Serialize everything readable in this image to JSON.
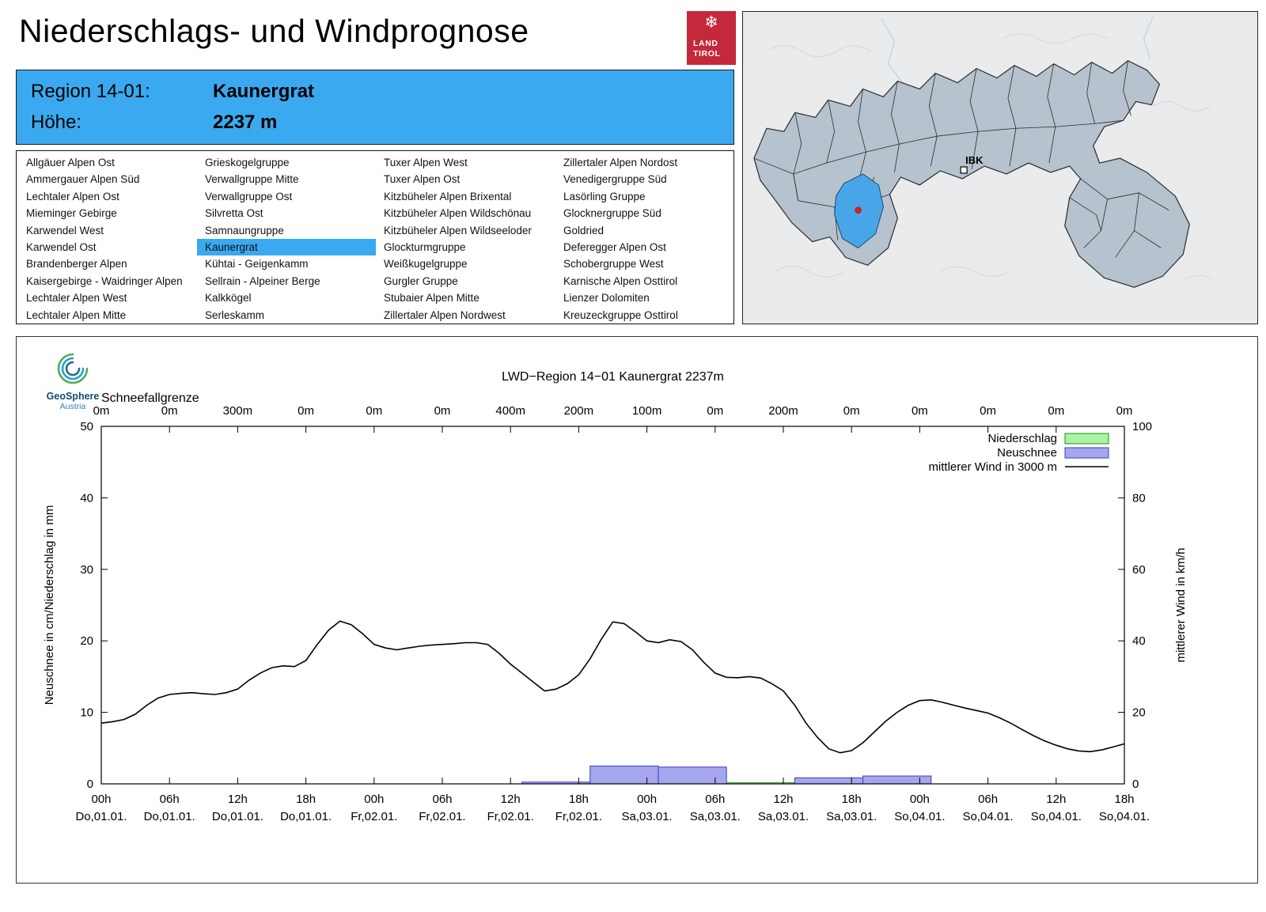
{
  "page": {
    "title": "Niederschlags- und Windprognose"
  },
  "colors": {
    "accent_blue": "#3aa9ef",
    "brand_red": "#c4283b",
    "map_region_fill": "#b6c2ce",
    "map_highlight": "#48a6e8",
    "map_marker_red": "#c62828",
    "bar_precip_fill": "#a9f3a2",
    "bar_precip_stroke": "#18921b",
    "bar_snow_fill": "#a6a6ec",
    "bar_snow_stroke": "#3c3cc8",
    "wind_line": "#000000"
  },
  "logo": {
    "land_label": "LAND",
    "tirol_label": "TIROL",
    "snowflake_icon": "❄"
  },
  "map": {
    "city_label": "IBK"
  },
  "branding": {
    "geosphere": "GeoSphere",
    "austria": "Austria"
  },
  "region_info": {
    "region_label": "Region 14-01:",
    "region_value": "Kaunergrat",
    "altitude_label": "Höhe:",
    "altitude_value": "2237 m"
  },
  "region_list": {
    "selected": "Kaunergrat",
    "columns": [
      [
        "Allgäuer Alpen Ost",
        "Ammergauer Alpen Süd",
        "Lechtaler Alpen Ost",
        "Mieminger Gebirge",
        "Karwendel West",
        "Karwendel Ost",
        "Brandenberger Alpen",
        "Kaisergebirge - Waidringer Alpen",
        "Lechtaler Alpen West",
        "Lechtaler Alpen Mitte"
      ],
      [
        "Grieskogelgruppe",
        "Verwallgruppe Mitte",
        "Verwallgruppe Ost",
        "Silvretta Ost",
        "Samnaungruppe",
        "Kaunergrat",
        "Kühtai - Geigenkamm",
        "Sellrain - Alpeiner Berge",
        "Kalkkögel",
        "Serleskamm"
      ],
      [
        "Tuxer Alpen West",
        "Tuxer Alpen Ost",
        "Kitzbüheler Alpen Brixental",
        "Kitzbüheler Alpen Wildschönau",
        "Kitzbüheler Alpen Wildseeloder",
        "Glockturmgruppe",
        "Weißkugelgruppe",
        "Gurgler Gruppe",
        "Stubaier Alpen Mitte",
        "Zillertaler Alpen Nordwest"
      ],
      [
        "Zillertaler Alpen Nordost",
        "Venedigergruppe Süd",
        "Lasörling Gruppe",
        "Glocknergruppe Süd",
        "Goldried",
        "Deferegger Alpen Ost",
        "Schobergruppe West",
        "Karnische Alpen Osttirol",
        "Lienzer Dolomiten",
        "Kreuzeckgruppe Osttirol"
      ]
    ]
  },
  "chart_data": {
    "type": "line+bar",
    "title": "LWD−Region 14−01 Kaunergrat 2237m",
    "top_axis": {
      "label": "Schneefallgrenze",
      "tick_labels": [
        "0m",
        "0m",
        "300m",
        "0m",
        "0m",
        "0m",
        "400m",
        "200m",
        "100m",
        "0m",
        "200m",
        "0m",
        "0m",
        "0m",
        "0m",
        "0m"
      ]
    },
    "x_ticks": [
      {
        "hour_label": "00h",
        "date_label": "Do,01.01."
      },
      {
        "hour_label": "06h",
        "date_label": "Do,01.01."
      },
      {
        "hour_label": "12h",
        "date_label": "Do,01.01."
      },
      {
        "hour_label": "18h",
        "date_label": "Do,01.01."
      },
      {
        "hour_label": "00h",
        "date_label": "Fr,02.01."
      },
      {
        "hour_label": "06h",
        "date_label": "Fr,02.01."
      },
      {
        "hour_label": "12h",
        "date_label": "Fr,02.01."
      },
      {
        "hour_label": "18h",
        "date_label": "Fr,02.01."
      },
      {
        "hour_label": "00h",
        "date_label": "Sa,03.01."
      },
      {
        "hour_label": "06h",
        "date_label": "Sa,03.01."
      },
      {
        "hour_label": "12h",
        "date_label": "Sa,03.01."
      },
      {
        "hour_label": "18h",
        "date_label": "Sa,03.01."
      },
      {
        "hour_label": "00h",
        "date_label": "So,04.01."
      },
      {
        "hour_label": "06h",
        "date_label": "So,04.01."
      },
      {
        "hour_label": "12h",
        "date_label": "So,04.01."
      },
      {
        "hour_label": "18h",
        "date_label": "So,04.01."
      }
    ],
    "x_range_hours": [
      0,
      90
    ],
    "ylabel_left": "Neuschnee in cm/Niederschlag in mm",
    "ylabel_right": "mittlerer Wind in km/h",
    "ylim_left": [
      0,
      50
    ],
    "yticks_left": [
      0,
      10,
      20,
      30,
      40,
      50
    ],
    "ylim_right": [
      0,
      100
    ],
    "yticks_right": [
      0,
      20,
      40,
      60,
      80,
      100
    ],
    "legend": [
      {
        "label": "Niederschlag",
        "type": "box",
        "fill": "#a9f3a2",
        "stroke": "#18921b"
      },
      {
        "label": "Neuschnee",
        "type": "box",
        "fill": "#a6a6ec",
        "stroke": "#3c3cc8"
      },
      {
        "label": "mittlerer Wind in 3000 m",
        "type": "line",
        "stroke": "#000000"
      }
    ],
    "series": {
      "niederschlag_mm": [
        {
          "from": 55,
          "to": 61,
          "value": 0.15
        }
      ],
      "neuschnee_cm": [
        {
          "from": 37,
          "to": 43,
          "value": 0.25
        },
        {
          "from": 43,
          "to": 49,
          "value": 2.5
        },
        {
          "from": 49,
          "to": 55,
          "value": 2.35
        },
        {
          "from": 61,
          "to": 67,
          "value": 0.85
        },
        {
          "from": 67,
          "to": 73,
          "value": 1.1
        }
      ],
      "wind_kmh": [
        [
          0,
          17
        ],
        [
          1,
          17.4
        ],
        [
          2,
          18
        ],
        [
          3,
          19.5
        ],
        [
          4,
          22
        ],
        [
          5,
          24
        ],
        [
          6,
          25
        ],
        [
          7,
          25.3
        ],
        [
          8,
          25.5
        ],
        [
          9,
          25.2
        ],
        [
          10,
          25
        ],
        [
          11,
          25.5
        ],
        [
          12,
          26.5
        ],
        [
          13,
          29
        ],
        [
          14,
          31
        ],
        [
          15,
          32.5
        ],
        [
          16,
          33
        ],
        [
          17,
          32.8
        ],
        [
          18,
          34.5
        ],
        [
          19,
          39
        ],
        [
          20,
          43
        ],
        [
          21,
          45.5
        ],
        [
          22,
          44.5
        ],
        [
          23,
          42
        ],
        [
          24,
          39
        ],
        [
          25,
          38
        ],
        [
          26,
          37.5
        ],
        [
          27,
          38
        ],
        [
          28,
          38.5
        ],
        [
          29,
          38.8
        ],
        [
          30,
          39
        ],
        [
          31,
          39.2
        ],
        [
          32,
          39.5
        ],
        [
          33,
          39.5
        ],
        [
          34,
          39
        ],
        [
          35,
          36.5
        ],
        [
          36,
          33.5
        ],
        [
          37,
          31
        ],
        [
          38,
          28.5
        ],
        [
          39,
          26
        ],
        [
          40,
          26.5
        ],
        [
          41,
          28
        ],
        [
          42,
          30.5
        ],
        [
          43,
          35
        ],
        [
          44,
          40.5
        ],
        [
          45,
          45.3
        ],
        [
          46,
          44.8
        ],
        [
          47,
          42.5
        ],
        [
          48,
          40
        ],
        [
          49,
          39.5
        ],
        [
          50,
          40.3
        ],
        [
          51,
          39.8
        ],
        [
          52,
          37.5
        ],
        [
          53,
          34
        ],
        [
          54,
          31
        ],
        [
          55,
          29.8
        ],
        [
          56,
          29.7
        ],
        [
          57,
          30
        ],
        [
          58,
          29.6
        ],
        [
          59,
          28
        ],
        [
          60,
          26
        ],
        [
          61,
          22
        ],
        [
          62,
          17
        ],
        [
          63,
          13
        ],
        [
          64,
          9.8
        ],
        [
          65,
          8.7
        ],
        [
          66,
          9.3
        ],
        [
          67,
          11.5
        ],
        [
          68,
          14.5
        ],
        [
          69,
          17.5
        ],
        [
          70,
          20
        ],
        [
          71,
          22
        ],
        [
          72,
          23.3
        ],
        [
          73,
          23.5
        ],
        [
          74,
          22.8
        ],
        [
          75,
          22
        ],
        [
          76,
          21.2
        ],
        [
          77,
          20.5
        ],
        [
          78,
          19.8
        ],
        [
          79,
          18.5
        ],
        [
          80,
          17
        ],
        [
          81,
          15.2
        ],
        [
          82,
          13.5
        ],
        [
          83,
          12
        ],
        [
          84,
          10.8
        ],
        [
          85,
          9.8
        ],
        [
          86,
          9.2
        ],
        [
          87,
          9
        ],
        [
          88,
          9.5
        ],
        [
          89,
          10.3
        ],
        [
          90,
          11.2
        ]
      ]
    }
  }
}
